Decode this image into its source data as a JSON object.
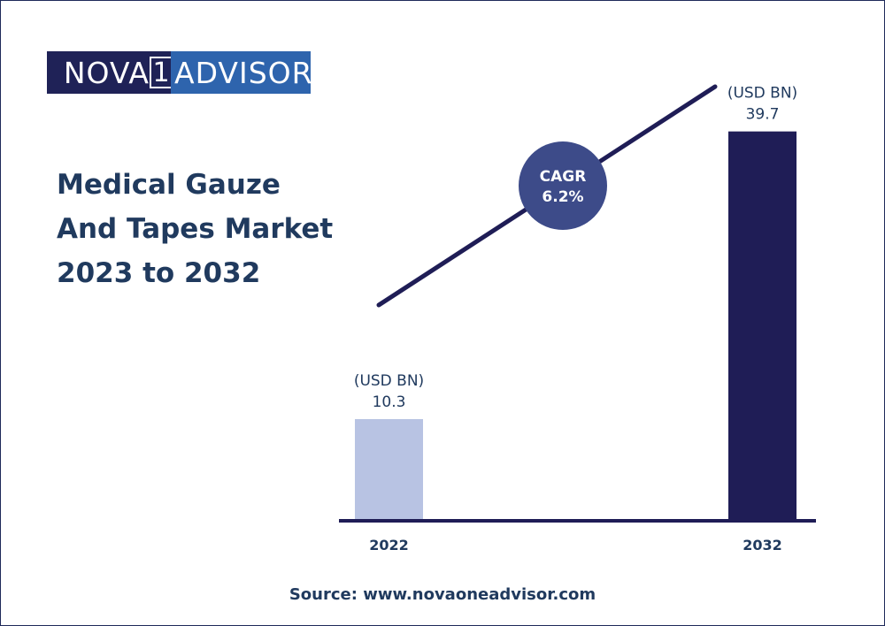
{
  "logo": {
    "left": "NOVA",
    "mid": "1",
    "right": "ADVISOR"
  },
  "title_lines": [
    "Medical Gauze",
    "And Tapes Market",
    "2023 to 2032"
  ],
  "source": "Source: www.novaoneadvisor.com",
  "cagr": {
    "label": "CAGR",
    "value": "6.2%"
  },
  "colors": {
    "bar_2022": "#b8c3e3",
    "bar_2032": "#1f1d56",
    "line": "#1f1d56",
    "circle": "#3d4b89",
    "text": "#203a5e"
  },
  "chart_data": {
    "type": "bar",
    "categories": [
      "2022",
      "2032"
    ],
    "values": [
      10.3,
      39.7
    ],
    "unit_label": "(USD BN)",
    "data_labels": [
      "10.3",
      "39.7"
    ],
    "ylim": [
      0,
      45
    ],
    "grid": false,
    "legend": "none"
  }
}
